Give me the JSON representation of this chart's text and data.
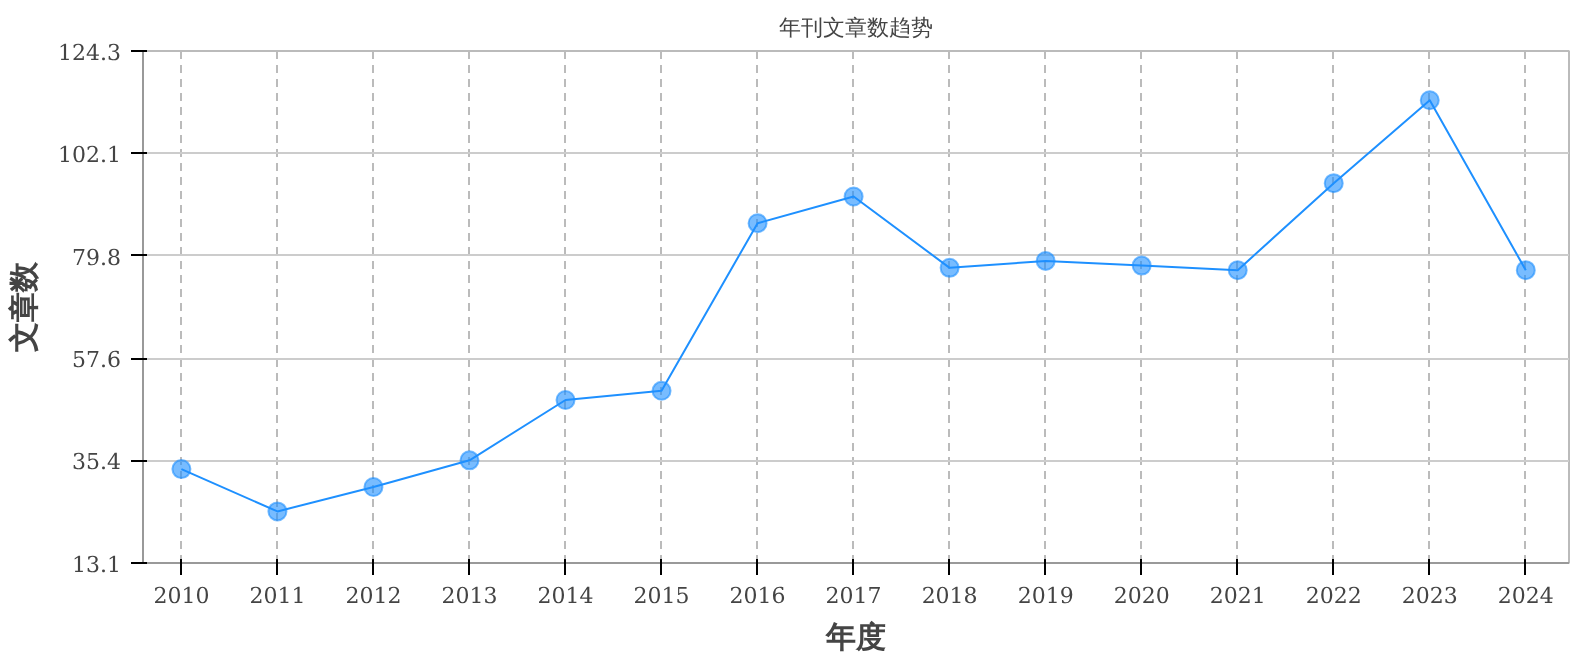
{
  "chart_data": {
    "type": "line",
    "title": "年刊文章数趋势",
    "xlabel": "年度",
    "ylabel": "文章数",
    "categories": [
      "2010",
      "2011",
      "2012",
      "2013",
      "2014",
      "2015",
      "2016",
      "2017",
      "2018",
      "2019",
      "2020",
      "2021",
      "2022",
      "2023",
      "2024"
    ],
    "series": [
      {
        "color": "#1e90ff",
        "values": [
          33.5,
          24.3,
          29.6,
          35.4,
          48.5,
          50.5,
          86.9,
          92.7,
          77.2,
          78.7,
          77.7,
          76.7,
          95.6,
          113.6,
          76.7
        ]
      }
    ],
    "ylim": [
      13.1,
      124.3
    ],
    "yticks": [
      13.1,
      35.4,
      57.6,
      79.8,
      102.1,
      124.3
    ],
    "grid": true,
    "marker": "circle",
    "line_style": "solid"
  }
}
